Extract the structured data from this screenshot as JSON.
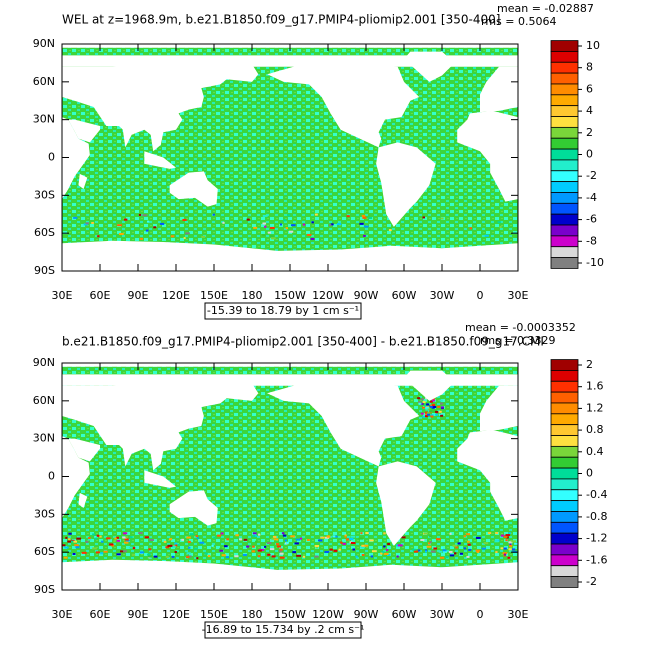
{
  "panels": [
    {
      "title": "WEL at z=1968.9m, b.e21.B1850.f09_g17.PMIP4-pliomip2.001 [350-400]",
      "mean": "mean = -0.02887",
      "rms": "rms = 0.5064",
      "lat_labels": [
        "90N",
        "60N",
        "30N",
        "0",
        "30S",
        "60S",
        "90S"
      ],
      "lon_labels": [
        "30E",
        "60E",
        "90E",
        "120E",
        "150E",
        "180",
        "150W",
        "120W",
        "90W",
        "60W",
        "30W",
        "0",
        "30E"
      ],
      "colorbar": {
        "labels": [
          10,
          8,
          6,
          4,
          2,
          0,
          -2,
          -4,
          -6,
          -8,
          -10
        ],
        "colors": [
          "#a00000",
          "#dd0000",
          "#ff3000",
          "#ff6000",
          "#ff8c00",
          "#ffaa00",
          "#ffc830",
          "#ffe040",
          "#7ad63a",
          "#33cc33",
          "#00dd99",
          "#22eecc",
          "#33ffff",
          "#00ccff",
          "#0099ff",
          "#0055ff",
          "#0000cc",
          "#7a00cc",
          "#cc00cc",
          "#d8d8d8",
          "#808080"
        ]
      },
      "range_note": "-15.39 to 18.79 by 1 cm s⁻¹"
    },
    {
      "title": "b.e21.B1850.f09_g17.PMIP4-pliomip2.001 [350-400] - b.e21.B1850.f09_g17.CMI",
      "mean": "mean = -0.0003352",
      "rms": "rms = 0.3329",
      "lat_labels": [
        "90N",
        "60N",
        "30N",
        "0",
        "30S",
        "60S",
        "90S"
      ],
      "lon_labels": [
        "30E",
        "60E",
        "90E",
        "120E",
        "150E",
        "180",
        "150W",
        "120W",
        "90W",
        "60W",
        "30W",
        "0",
        "30E"
      ],
      "colorbar": {
        "labels": [
          2,
          1.6,
          1.2,
          0.8,
          0.4,
          0,
          -0.4,
          -0.8,
          -1.2,
          -1.6,
          -2
        ],
        "colors": [
          "#a00000",
          "#dd0000",
          "#ff3000",
          "#ff6000",
          "#ff8c00",
          "#ffaa00",
          "#ffc830",
          "#ffe040",
          "#7ad63a",
          "#33cc33",
          "#00dd99",
          "#22eecc",
          "#33ffff",
          "#00ccff",
          "#0099ff",
          "#0055ff",
          "#0000cc",
          "#7a00cc",
          "#cc00cc",
          "#d8d8d8",
          "#808080"
        ]
      },
      "range_note": "-16.89 to 15.734 by .2 cm s⁻¹"
    }
  ]
}
